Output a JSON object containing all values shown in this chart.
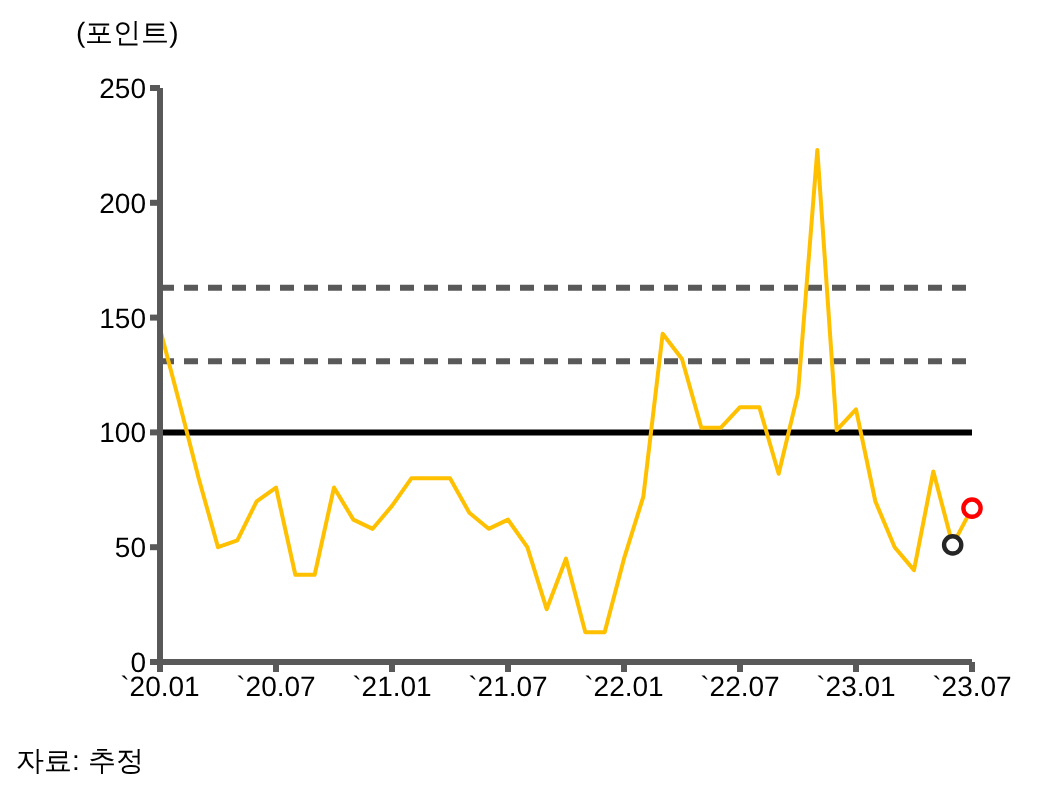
{
  "chart_data": {
    "type": "line",
    "ylabel": "(포인트)",
    "annotations": [
      "자료: 추정"
    ],
    "x": [
      "2020-01",
      "2020-02",
      "2020-03",
      "2020-04",
      "2020-05",
      "2020-06",
      "2020-07",
      "2020-08",
      "2020-09",
      "2020-10",
      "2020-11",
      "2020-12",
      "2021-01",
      "2021-02",
      "2021-03",
      "2021-04",
      "2021-05",
      "2021-06",
      "2021-07",
      "2021-08",
      "2021-09",
      "2021-10",
      "2021-11",
      "2021-12",
      "2022-01",
      "2022-02",
      "2022-03",
      "2022-04",
      "2022-05",
      "2022-06",
      "2022-07",
      "2022-08",
      "2022-09",
      "2022-10",
      "2022-11",
      "2022-12",
      "2023-01",
      "2023-02",
      "2023-03",
      "2023-04",
      "2023-05",
      "2023-06",
      "2023-07"
    ],
    "series": [
      {
        "color": "#ffc000",
        "marker": "none",
        "values": [
          145,
          113,
          80,
          50,
          53,
          70,
          76,
          38,
          38,
          76,
          62,
          58,
          68,
          80,
          80,
          80,
          65,
          58,
          62,
          50,
          23,
          45,
          13,
          13,
          45,
          72,
          143,
          132,
          102,
          102,
          111,
          111,
          82,
          117,
          223,
          101,
          110,
          70,
          50,
          40,
          83,
          51,
          67
        ]
      },
      {
        "type": "scatter",
        "color": "#262626",
        "marker": "circle",
        "x": [
          "2023-06"
        ],
        "values": [
          51
        ]
      },
      {
        "type": "scatter",
        "color": "#ff0000",
        "marker": "circle",
        "x": [
          "2023-07"
        ],
        "values": [
          67
        ]
      }
    ],
    "ylim": [
      0,
      250
    ],
    "yticks": [
      0,
      50,
      100,
      150,
      200,
      250
    ],
    "xlim": [
      "2020-01",
      "2023-07"
    ],
    "xticks": [
      {
        "value": "2020-01",
        "label": "`20.01"
      },
      {
        "value": "2020-07",
        "label": "`20.07"
      },
      {
        "value": "2021-01",
        "label": "`21.01"
      },
      {
        "value": "2021-07",
        "label": "`21.07"
      },
      {
        "value": "2022-01",
        "label": "`22.01"
      },
      {
        "value": "2022-07",
        "label": "`22.07"
      },
      {
        "value": "2023-01",
        "label": "`23.01"
      },
      {
        "value": "2023-07",
        "label": "`23.07"
      }
    ],
    "ref_lines": [
      {
        "axis": "y",
        "value": 100,
        "color": "#000000",
        "line_style": "solid"
      },
      {
        "axis": "y",
        "value": 131,
        "color": "#595959",
        "line_style": "dashed"
      },
      {
        "axis": "y",
        "value": 163,
        "color": "#595959",
        "line_style": "dashed"
      }
    ],
    "grid": false,
    "legend": false
  }
}
